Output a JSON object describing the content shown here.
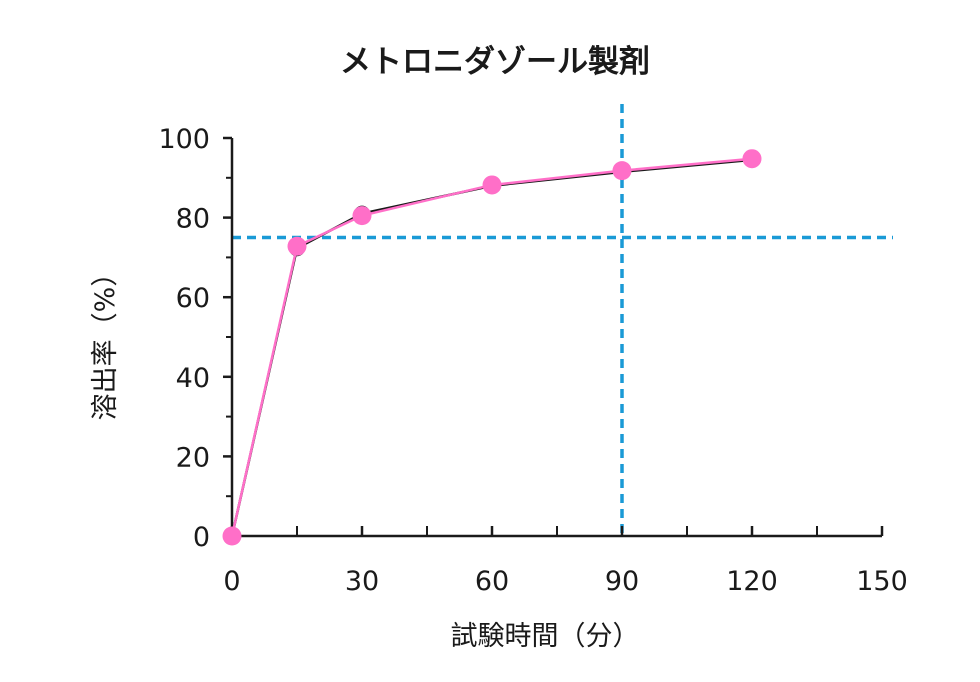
{
  "chart_data": {
    "type": "line",
    "title": "メトロニダゾール製剤",
    "xlabel": "試験時間（分）",
    "ylabel": "溶出率（%）",
    "xlim": [
      0,
      150
    ],
    "ylim": [
      0,
      100
    ],
    "x_ticks": [
      0,
      30,
      60,
      90,
      120,
      150
    ],
    "x_minor_ticks": [
      15,
      45,
      75,
      105,
      135
    ],
    "y_ticks": [
      0,
      20,
      40,
      60,
      80,
      100
    ],
    "y_minor_ticks": [
      10,
      30,
      50,
      70,
      90
    ],
    "grid": false,
    "series": [
      {
        "color": "#1a1a1a",
        "x": [
          0,
          15,
          30,
          60,
          90,
          120
        ],
        "y": [
          0,
          72.3,
          81,
          88,
          91.5,
          94.5
        ]
      },
      {
        "color": "#ff6fc8",
        "x": [
          0,
          15,
          30,
          60,
          90,
          120
        ],
        "y": [
          0,
          72.8,
          80.5,
          88.2,
          91.8,
          94.8
        ]
      }
    ],
    "reference_lines": [
      {
        "axis": "y",
        "value": 75,
        "color": "#1a9ad6",
        "style": "dashed"
      },
      {
        "axis": "x",
        "value": 90,
        "color": "#1a9ad6",
        "style": "dashed"
      }
    ]
  }
}
